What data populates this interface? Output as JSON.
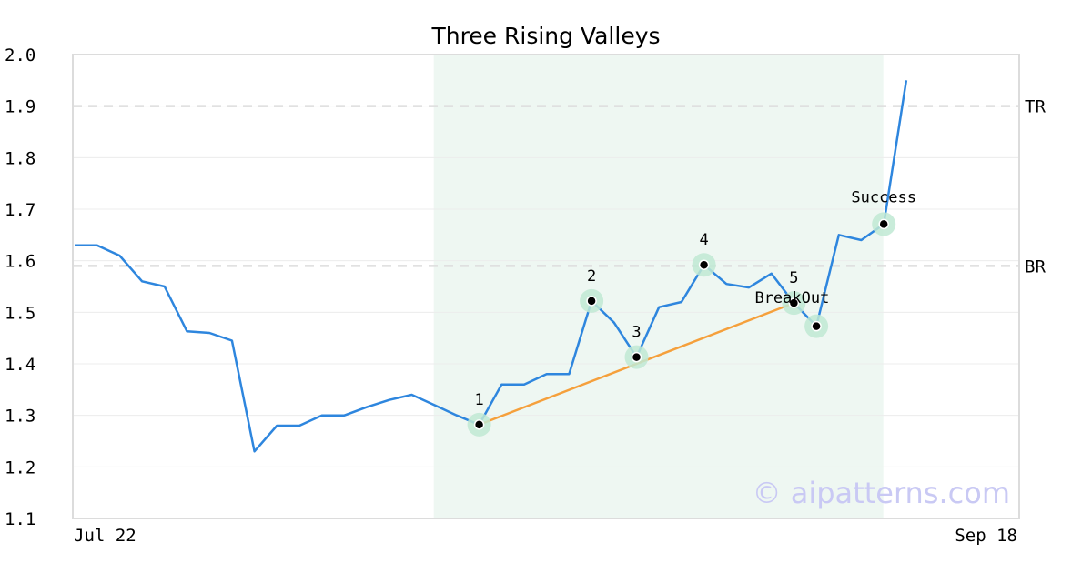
{
  "chart_data": {
    "type": "line",
    "title": "Three Rising Valleys",
    "xlabel": "",
    "ylabel": "",
    "ylim": [
      1.1,
      2.0
    ],
    "yticks": [
      "1.1",
      "1.2",
      "1.3",
      "1.4",
      "1.5",
      "1.6",
      "1.7",
      "1.8",
      "1.9",
      "2.0"
    ],
    "xtick_labels": [
      "Jul 22",
      "Sep 18"
    ],
    "series": [
      {
        "color": "#2e86de",
        "values": [
          1.63,
          1.63,
          1.61,
          1.56,
          1.55,
          1.463,
          1.46,
          1.445,
          1.23,
          1.28,
          1.28,
          1.3,
          1.3,
          1.316,
          1.33,
          1.34,
          1.32,
          1.3,
          1.282,
          1.36,
          1.36,
          1.38,
          1.38,
          1.522,
          1.48,
          1.413,
          1.51,
          1.52,
          1.592,
          1.555,
          1.548,
          1.575,
          1.518,
          1.473,
          1.65,
          1.64,
          1.671,
          1.95
        ]
      }
    ],
    "trendline": {
      "color": "#f5a03c",
      "from": [
        18,
        1.282
      ],
      "to": [
        32,
        1.518
      ]
    },
    "reference_lines": [
      {
        "label": "TR",
        "value": 1.9
      },
      {
        "label": "BR",
        "value": 1.59
      }
    ],
    "highlight_region": {
      "from": 16,
      "to": 36,
      "color": "#eef7f2"
    },
    "points": [
      {
        "label": "1",
        "x": 18,
        "y": 1.282
      },
      {
        "label": "2",
        "x": 23,
        "y": 1.522
      },
      {
        "label": "3",
        "x": 25,
        "y": 1.413
      },
      {
        "label": "4",
        "x": 28,
        "y": 1.592
      },
      {
        "label": "5",
        "x": 32,
        "y": 1.518
      },
      {
        "label": "",
        "x": 33,
        "y": 1.473
      },
      {
        "label": "",
        "x": 36,
        "y": 1.671
      }
    ],
    "annotations": [
      {
        "text": "BreakOut",
        "x": 32,
        "y": 1.518
      },
      {
        "text": "Success",
        "x": 36,
        "y": 1.671
      }
    ],
    "watermark": "© aipatterns.com",
    "grid": true
  }
}
